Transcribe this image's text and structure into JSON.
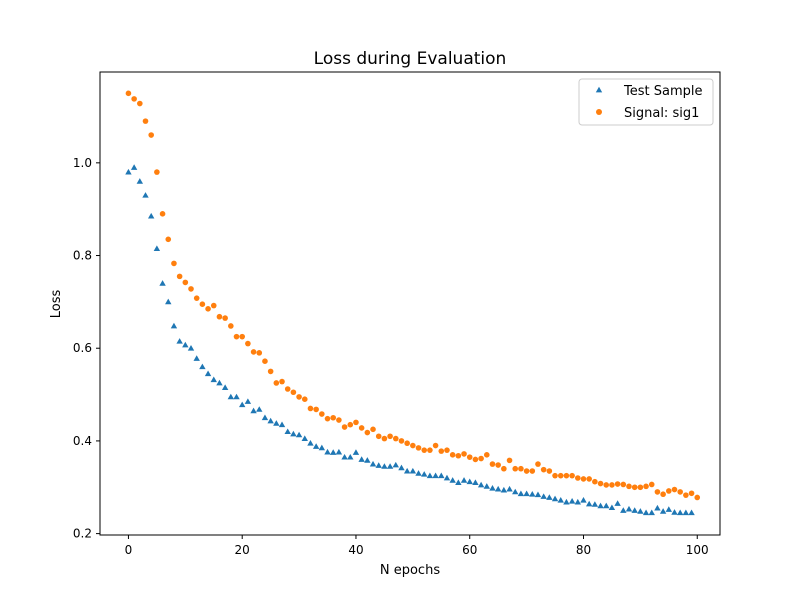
{
  "chart_data": {
    "type": "scatter",
    "title": "Loss during Evaluation",
    "xlabel": "N epochs",
    "ylabel": "Loss",
    "xlim": [
      -5,
      104
    ],
    "ylim": [
      0.197,
      1.196
    ],
    "xticks": [
      0,
      20,
      40,
      60,
      80,
      100
    ],
    "yticks": [
      0.2,
      0.4,
      0.6,
      0.8,
      1.0
    ],
    "xtick_labels": [
      "0",
      "20",
      "40",
      "60",
      "80",
      "100"
    ],
    "ytick_labels": [
      "0.2",
      "0.4",
      "0.6",
      "0.8",
      "1.0"
    ],
    "grid": false,
    "legend_position": "upper right",
    "series": [
      {
        "name": "Test Sample",
        "color": "#1f77b4",
        "marker": "triangle",
        "values": [
          0.98,
          0.99,
          0.96,
          0.93,
          0.885,
          0.815,
          0.74,
          0.7,
          0.648,
          0.615,
          0.607,
          0.6,
          0.578,
          0.56,
          0.545,
          0.532,
          0.525,
          0.515,
          0.495,
          0.495,
          0.478,
          0.485,
          0.465,
          0.468,
          0.45,
          0.443,
          0.438,
          0.435,
          0.42,
          0.415,
          0.413,
          0.405,
          0.395,
          0.388,
          0.385,
          0.376,
          0.375,
          0.376,
          0.365,
          0.365,
          0.375,
          0.36,
          0.358,
          0.35,
          0.347,
          0.345,
          0.345,
          0.348,
          0.342,
          0.335,
          0.335,
          0.33,
          0.328,
          0.325,
          0.325,
          0.325,
          0.32,
          0.315,
          0.31,
          0.315,
          0.312,
          0.31,
          0.305,
          0.302,
          0.298,
          0.296,
          0.294,
          0.296,
          0.29,
          0.286,
          0.286,
          0.285,
          0.284,
          0.28,
          0.278,
          0.275,
          0.272,
          0.268,
          0.27,
          0.268,
          0.272,
          0.264,
          0.263,
          0.26,
          0.26,
          0.256,
          0.265,
          0.25,
          0.253,
          0.25,
          0.248,
          0.245,
          0.245,
          0.255,
          0.248,
          0.252,
          0.246,
          0.245,
          0.245,
          0.245
        ]
      },
      {
        "name": "Signal: sig1",
        "color": "#ff7f0e",
        "marker": "circle",
        "values": [
          1.15,
          1.138,
          1.128,
          1.09,
          1.06,
          0.98,
          0.89,
          0.835,
          0.783,
          0.755,
          0.742,
          0.728,
          0.708,
          0.695,
          0.685,
          0.692,
          0.668,
          0.665,
          0.648,
          0.625,
          0.625,
          0.61,
          0.592,
          0.59,
          0.572,
          0.55,
          0.525,
          0.528,
          0.512,
          0.505,
          0.495,
          0.49,
          0.47,
          0.468,
          0.458,
          0.448,
          0.45,
          0.445,
          0.43,
          0.435,
          0.44,
          0.428,
          0.418,
          0.425,
          0.41,
          0.405,
          0.41,
          0.405,
          0.4,
          0.395,
          0.39,
          0.385,
          0.38,
          0.38,
          0.39,
          0.378,
          0.38,
          0.37,
          0.368,
          0.372,
          0.365,
          0.36,
          0.362,
          0.37,
          0.35,
          0.348,
          0.34,
          0.358,
          0.34,
          0.34,
          0.335,
          0.335,
          0.35,
          0.338,
          0.335,
          0.325,
          0.325,
          0.325,
          0.325,
          0.32,
          0.318,
          0.318,
          0.312,
          0.308,
          0.305,
          0.305,
          0.307,
          0.306,
          0.302,
          0.3,
          0.3,
          0.302,
          0.306,
          0.29,
          0.285,
          0.292,
          0.295,
          0.29,
          0.283,
          0.287,
          0.278
        ]
      }
    ]
  }
}
